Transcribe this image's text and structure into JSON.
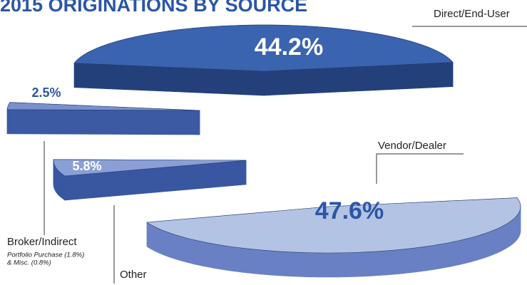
{
  "chart_data": {
    "type": "pie",
    "title": "2015 ORIGINATIONS BY SOURCE",
    "categories": [
      "Direct/End-User",
      "Vendor/Dealer",
      "Broker/Indirect",
      "Other"
    ],
    "values": [
      44.2,
      47.6,
      5.8,
      2.5
    ],
    "value_labels": [
      "44.2%",
      "47.6%",
      "5.8%",
      "2.5%"
    ],
    "colors": [
      "#3a63b0",
      "#b3c3e3",
      "#8a9fd6",
      "#7a90cc"
    ],
    "note": [
      "Portfolio Purchase (1.8%)",
      "& Misc. (0.8%)"
    ]
  }
}
